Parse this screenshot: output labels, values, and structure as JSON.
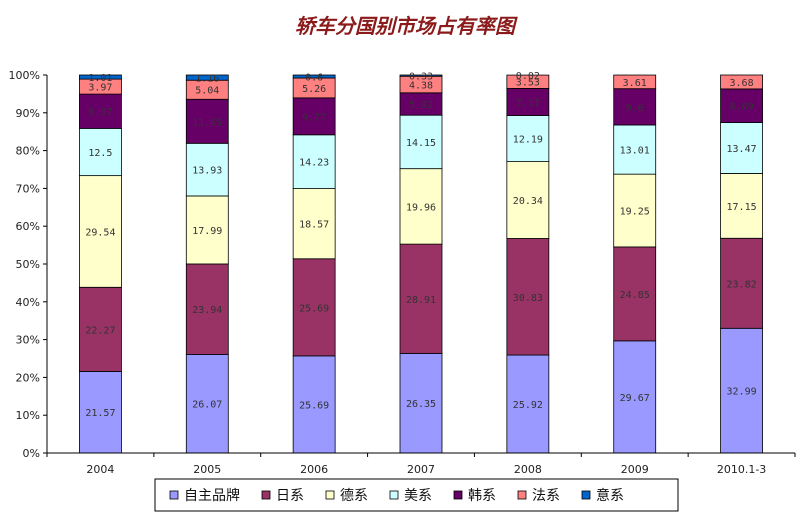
{
  "chart_data": {
    "type": "bar",
    "stacked": true,
    "title": "轿车分国别市场占有率图",
    "categories": [
      "2004",
      "2005",
      "2006",
      "2007",
      "2008",
      "2009",
      "2010.1-3"
    ],
    "ylim": [
      0,
      100
    ],
    "y_ticks": [
      "0%",
      "10%",
      "20%",
      "30%",
      "40%",
      "50%",
      "60%",
      "70%",
      "80%",
      "90%",
      "100%"
    ],
    "legend_position": "bottom",
    "series": [
      {
        "name": "自主品牌",
        "color": "#9999ff",
        "values": [
          21.57,
          26.07,
          25.69,
          26.35,
          25.92,
          29.67,
          32.99
        ],
        "labels": [
          "21.57",
          "26.07",
          "25.69",
          "26.35",
          "25.92",
          "29.67",
          "32.99"
        ]
      },
      {
        "name": "日系",
        "color": "#993366",
        "values": [
          22.27,
          23.94,
          25.69,
          28.91,
          30.83,
          24.85,
          23.82
        ],
        "labels": [
          "22.27",
          "23.94",
          "25.69",
          "28.91",
          "30.83",
          "24.85",
          "23.82"
        ]
      },
      {
        "name": "德系",
        "color": "#ffffcc",
        "values": [
          29.54,
          17.99,
          18.57,
          19.96,
          20.34,
          19.25,
          17.15
        ],
        "labels": [
          "29.54",
          "17.99",
          "18.57",
          "19.96",
          "20.34",
          "19.25",
          "17.15"
        ]
      },
      {
        "name": "美系",
        "color": "#ccffff",
        "values": [
          12.5,
          13.93,
          14.23,
          14.15,
          12.19,
          13.01,
          13.47
        ],
        "labels": [
          "12.5",
          "13.93",
          "14.23",
          "14.15",
          "12.19",
          "13.01",
          "13.47"
        ]
      },
      {
        "name": "韩系",
        "color": "#660066",
        "values": [
          9.07,
          11.65,
          9.77,
          5.92,
          7.17,
          9.6,
          8.89
        ],
        "labels": [
          "9.07",
          "11.65",
          "9.77",
          "5.92",
          "7.17",
          "9.6",
          "8.89"
        ]
      },
      {
        "name": "法系",
        "color": "#ff8080",
        "values": [
          3.97,
          5.04,
          5.26,
          4.38,
          3.53,
          3.61,
          3.68
        ],
        "labels": [
          "3.97",
          "5.04",
          "5.26",
          "4.38",
          "3.53",
          "3.61",
          "3.68"
        ]
      },
      {
        "name": "意系",
        "color": "#0066cc",
        "values": [
          1.01,
          1.16,
          0.6,
          0.33,
          0.02,
          0,
          0
        ],
        "labels": [
          "1.01",
          "1.16",
          "0.6",
          "0.33",
          "0.02",
          "",
          ""
        ]
      }
    ]
  }
}
